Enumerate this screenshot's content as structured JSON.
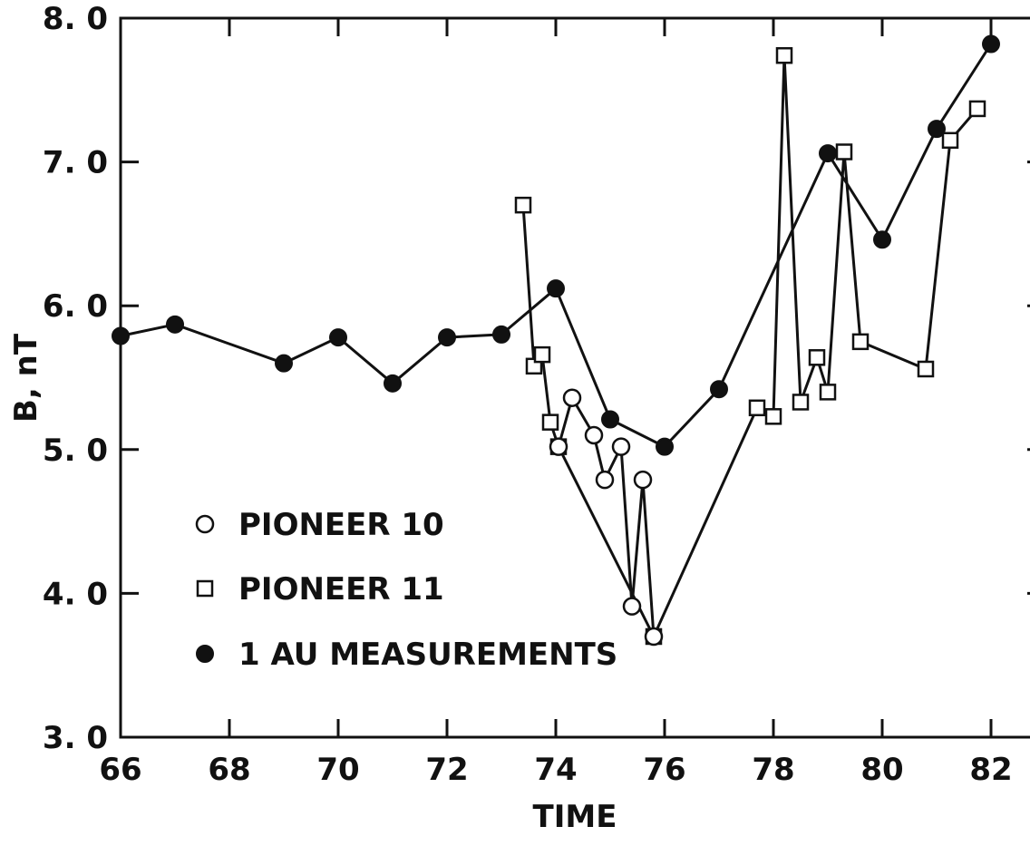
{
  "chart_data": {
    "type": "line",
    "title": "",
    "xlabel": "TIME",
    "ylabel": "B, nT",
    "xlim": [
      66,
      83
    ],
    "ylim": [
      3.0,
      8.0
    ],
    "xticks": [
      66,
      68,
      70,
      72,
      74,
      76,
      78,
      80,
      82
    ],
    "xtick_labels": [
      "66",
      "68",
      "70",
      "72",
      "74",
      "76",
      "78",
      "80",
      "82"
    ],
    "yticks": [
      3.0,
      4.0,
      5.0,
      6.0,
      7.0,
      8.0
    ],
    "ytick_labels": [
      "3. 0",
      "4. 0",
      "5. 0",
      "6. 0",
      "7. 0",
      "8. 0"
    ],
    "grid": false,
    "legend_position": "lower-left",
    "series": [
      {
        "name": "1 AU MEASUREMENTS",
        "marker": "filled-circle",
        "color": "#111111",
        "x": [
          66.0,
          67.0,
          69.0,
          70.0,
          71.0,
          72.0,
          73.0,
          74.0,
          75.0,
          76.0,
          77.0,
          79.0,
          80.0,
          81.0,
          82.0
        ],
        "y": [
          5.79,
          5.87,
          5.6,
          5.78,
          5.46,
          5.78,
          5.8,
          6.12,
          5.21,
          5.02,
          5.42,
          7.06,
          6.46,
          7.23,
          7.82
        ]
      },
      {
        "name": "PIONEER 11",
        "marker": "open-square",
        "color": "#111111",
        "x": [
          73.4,
          73.6,
          73.75,
          73.9,
          74.05,
          75.8,
          77.7,
          78.0,
          78.2,
          78.5,
          78.8,
          79.0,
          79.3,
          79.6,
          80.8,
          81.25,
          81.75
        ],
        "y": [
          6.7,
          5.58,
          5.66,
          5.19,
          5.02,
          3.7,
          5.29,
          5.23,
          7.74,
          5.33,
          5.64,
          5.4,
          7.07,
          5.75,
          5.56,
          7.15,
          7.37
        ]
      },
      {
        "name": "PIONEER 10",
        "marker": "open-circle",
        "color": "#111111",
        "x": [
          74.05,
          74.3,
          74.7,
          74.9,
          75.2,
          75.4,
          75.6,
          75.8
        ],
        "y": [
          5.02,
          5.36,
          5.1,
          4.79,
          5.02,
          3.91,
          4.79,
          3.7
        ]
      }
    ],
    "legend": [
      {
        "label": "PIONEER 10",
        "marker": "open-circle"
      },
      {
        "label": "PIONEER 11",
        "marker": "open-square"
      },
      {
        "label": "1 AU MEASUREMENTS",
        "marker": "filled-circle"
      }
    ]
  }
}
